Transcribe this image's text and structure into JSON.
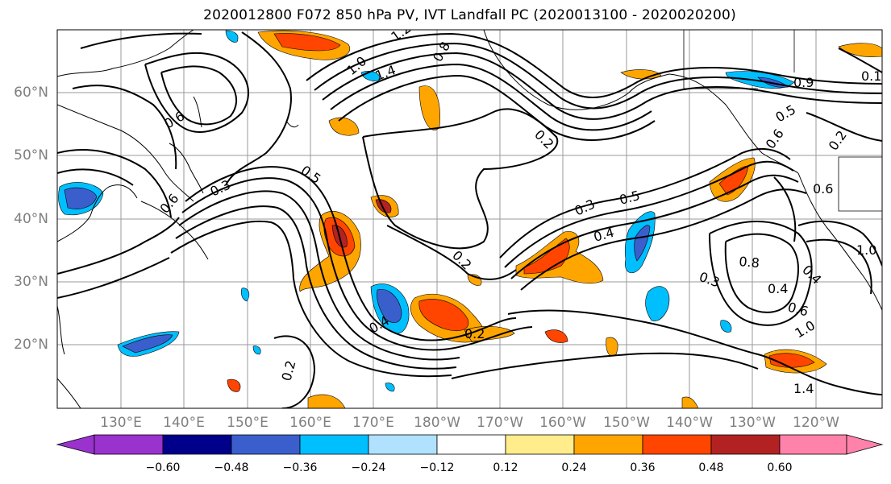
{
  "title": "2020012800 F072 850 hPa PV, IVT Landfall PC (2020013100 - 2020020200)",
  "lat_labels": [
    "60°N",
    "50°N",
    "40°N",
    "30°N",
    "20°N"
  ],
  "lon_labels": [
    "130°E",
    "140°E",
    "150°E",
    "160°E",
    "170°E",
    "180°W",
    "170°W",
    "160°W",
    "150°W",
    "140°W",
    "130°W",
    "120°W"
  ],
  "colorbar": {
    "ticks": [
      "−0.60",
      "−0.48",
      "−0.36",
      "−0.24",
      "−0.12",
      "0.12",
      "0.24",
      "0.36",
      "0.48",
      "0.60"
    ],
    "colors": [
      "#9a32cd",
      "#00008b",
      "#3a5fcd",
      "#00bfff",
      "#b0e2ff",
      "#ffffff",
      "#ffec8b",
      "#ffa500",
      "#ff4500",
      "#b22222",
      "#ff82ab"
    ]
  },
  "contour_labels": [
    "1.2",
    "1.0",
    "1.4",
    "0.8",
    "0.6",
    "0.2",
    "0.3",
    "0.5",
    "0.6",
    "0.2",
    "0.4",
    "0.2",
    "0.2",
    "0.5",
    "0.3",
    "0.4",
    "0.5",
    "0.6",
    "0.2",
    "0.3",
    "0.4",
    "0.6",
    "1.0",
    "0.8",
    "1.4",
    "1.0",
    "0.4",
    "0.6",
    "0.9",
    "0.1"
  ]
}
